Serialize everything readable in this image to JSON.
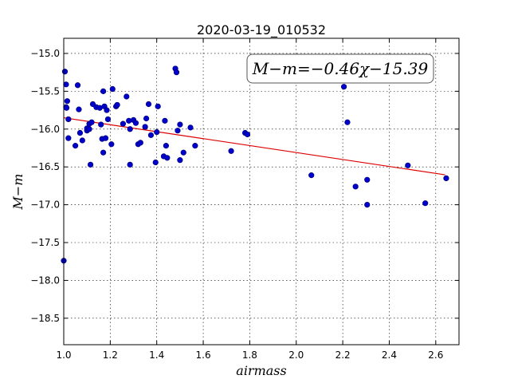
{
  "chart_data": {
    "type": "scatter",
    "title": "2020-03-19_010532",
    "xlabel": "airmass",
    "ylabel": "M−m",
    "annotation": "M−m=−0.46χ−15.39",
    "xlim": [
      1.0,
      2.7
    ],
    "ylim": [
      -18.85,
      -14.8
    ],
    "y_inverted": true,
    "grid": true,
    "xticks": [
      1.0,
      1.2,
      1.4,
      1.6,
      1.8,
      2.0,
      2.2,
      2.4,
      2.6
    ],
    "xtick_labels": [
      "1.0",
      "1.2",
      "1.4",
      "1.6",
      "1.8",
      "2.0",
      "2.2",
      "2.4",
      "2.6"
    ],
    "yticks": [
      -15.0,
      -15.5,
      -16.0,
      -16.5,
      -17.0,
      -17.5,
      -18.0,
      -18.5
    ],
    "ytick_labels": [
      "−15.0",
      "−15.5",
      "−16.0",
      "−16.5",
      "−17.0",
      "−17.5",
      "−18.0",
      "−18.5"
    ],
    "colors": {
      "points": "#0000cc",
      "point_edge": "#000066",
      "fit_line": "#dd0000"
    },
    "fit": {
      "slope": -0.46,
      "intercept": -15.39,
      "x_range": [
        1.0,
        2.64
      ]
    },
    "points": [
      [
        1.005,
        -15.24
      ],
      [
        1.01,
        -15.41
      ],
      [
        1.01,
        -15.71
      ],
      [
        1.012,
        -15.72
      ],
      [
        1.015,
        -15.63
      ],
      [
        1.02,
        -15.87
      ],
      [
        1.02,
        -16.12
      ],
      [
        1.0,
        -17.74
      ],
      [
        1.05,
        -16.22
      ],
      [
        1.06,
        -15.42
      ],
      [
        1.065,
        -15.74
      ],
      [
        1.07,
        -16.05
      ],
      [
        1.08,
        -16.15
      ],
      [
        1.1,
        -16.02
      ],
      [
        1.1,
        -15.99
      ],
      [
        1.11,
        -16.0
      ],
      [
        1.11,
        -15.93
      ],
      [
        1.115,
        -16.47
      ],
      [
        1.12,
        -15.91
      ],
      [
        1.125,
        -15.67
      ],
      [
        1.14,
        -15.71
      ],
      [
        1.155,
        -15.72
      ],
      [
        1.16,
        -15.94
      ],
      [
        1.165,
        -16.13
      ],
      [
        1.17,
        -15.5
      ],
      [
        1.17,
        -16.31
      ],
      [
        1.175,
        -15.7
      ],
      [
        1.18,
        -16.12
      ],
      [
        1.185,
        -15.75
      ],
      [
        1.19,
        -15.87
      ],
      [
        1.205,
        -16.2
      ],
      [
        1.21,
        -15.47
      ],
      [
        1.225,
        -15.7
      ],
      [
        1.23,
        -15.68
      ],
      [
        1.255,
        -15.93
      ],
      [
        1.27,
        -15.57
      ],
      [
        1.28,
        -15.89
      ],
      [
        1.285,
        -16.0
      ],
      [
        1.285,
        -16.47
      ],
      [
        1.3,
        -15.88
      ],
      [
        1.31,
        -15.92
      ],
      [
        1.32,
        -16.2
      ],
      [
        1.33,
        -16.18
      ],
      [
        1.35,
        -15.97
      ],
      [
        1.355,
        -15.86
      ],
      [
        1.365,
        -15.67
      ],
      [
        1.375,
        -16.08
      ],
      [
        1.395,
        -16.44
      ],
      [
        1.4,
        -16.04
      ],
      [
        1.405,
        -15.7
      ],
      [
        1.43,
        -16.36
      ],
      [
        1.435,
        -15.89
      ],
      [
        1.44,
        -16.22
      ],
      [
        1.445,
        -16.38
      ],
      [
        1.48,
        -15.2
      ],
      [
        1.485,
        -15.25
      ],
      [
        1.49,
        -16.02
      ],
      [
        1.5,
        -16.41
      ],
      [
        1.5,
        -15.94
      ],
      [
        1.515,
        -16.31
      ],
      [
        1.545,
        -15.98
      ],
      [
        1.565,
        -16.22
      ],
      [
        1.72,
        -16.29
      ],
      [
        1.78,
        -16.05
      ],
      [
        1.79,
        -16.07
      ],
      [
        2.065,
        -16.61
      ],
      [
        2.205,
        -15.44
      ],
      [
        2.22,
        -15.91
      ],
      [
        2.255,
        -16.76
      ],
      [
        2.305,
        -17.0
      ],
      [
        2.305,
        -16.67
      ],
      [
        2.48,
        -16.48
      ],
      [
        2.555,
        -16.98
      ],
      [
        2.645,
        -16.65
      ]
    ]
  }
}
